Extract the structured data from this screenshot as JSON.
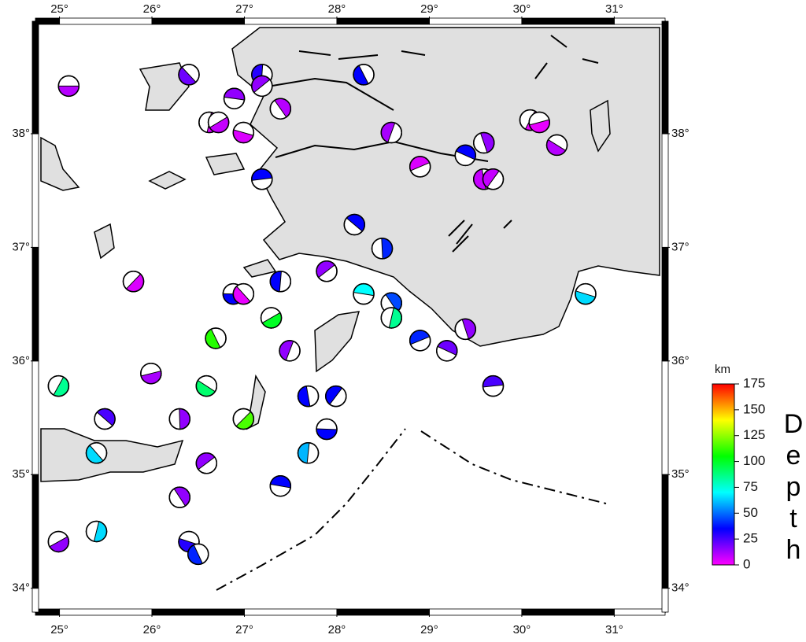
{
  "chart_data": {
    "type": "focal-map",
    "xlim": [
      24.74,
      31.55
    ],
    "ylim": [
      33.79,
      38.99
    ],
    "xticks": [
      {
        "value": 25,
        "label": "25°"
      },
      {
        "value": 26,
        "label": "26°"
      },
      {
        "value": 27,
        "label": "27°"
      },
      {
        "value": 28,
        "label": "28°"
      },
      {
        "value": 29,
        "label": "29°"
      },
      {
        "value": 30,
        "label": "30°"
      },
      {
        "value": 31,
        "label": "31°"
      }
    ],
    "yticks": [
      {
        "value": 34,
        "label": "34°"
      },
      {
        "value": 35,
        "label": "35°"
      },
      {
        "value": 36,
        "label": "36°"
      },
      {
        "value": 37,
        "label": "37°"
      },
      {
        "value": 38,
        "label": "38°"
      }
    ],
    "colorbar": {
      "unit": "km",
      "label": "Depth",
      "clim": [
        0,
        175
      ],
      "ticks": [
        0,
        25,
        50,
        75,
        100,
        125,
        150,
        175
      ],
      "colors": [
        "#ff00ff",
        "#0000ff",
        "#00ffff",
        "#00ff00",
        "#ffff00",
        "#ff0000"
      ]
    },
    "events": {
      "lon": [
        25.1,
        26.4,
        27.19,
        27.19,
        26.89,
        27.39,
        26.62,
        26.72,
        26.99,
        28.29,
        28.59,
        28.9,
        29.39,
        29.59,
        30.09,
        30.19,
        30.38,
        29.59,
        29.69,
        27.19,
        28.19,
        28.49,
        25.8,
        26.88,
        26.99,
        27.39,
        27.89,
        28.29,
        28.59,
        28.59,
        27.29,
        30.69,
        26.69,
        27.49,
        28.9,
        29.19,
        29.39,
        24.99,
        25.99,
        26.59,
        27.69,
        27.99,
        29.69,
        25.49,
        26.3,
        26.99,
        27.89,
        25.4,
        27.69,
        26.59,
        27.39,
        26.3,
        25.4,
        24.99,
        26.4,
        26.5
      ],
      "lat": [
        38.42,
        38.52,
        38.52,
        38.42,
        38.31,
        38.22,
        38.1,
        38.1,
        38.01,
        38.52,
        38.01,
        37.71,
        37.81,
        37.92,
        38.12,
        38.1,
        37.9,
        37.6,
        37.6,
        37.6,
        37.2,
        36.99,
        36.7,
        36.59,
        36.59,
        36.7,
        36.79,
        36.59,
        36.51,
        36.38,
        36.38,
        36.59,
        36.2,
        36.09,
        36.18,
        36.09,
        36.28,
        35.78,
        35.89,
        35.78,
        35.69,
        35.69,
        35.78,
        35.49,
        35.49,
        35.49,
        35.4,
        35.19,
        35.19,
        35.1,
        34.9,
        34.8,
        34.5,
        34.41,
        34.41,
        34.3
      ],
      "depth": [
        10,
        20,
        30,
        15,
        15,
        10,
        5,
        8,
        5,
        35,
        12,
        5,
        35,
        15,
        3,
        3,
        10,
        8,
        8,
        35,
        35,
        40,
        5,
        35,
        3,
        35,
        15,
        70,
        45,
        85,
        100,
        65,
        110,
        15,
        40,
        20,
        15,
        85,
        12,
        90,
        35,
        35,
        25,
        25,
        15,
        115,
        35,
        65,
        60,
        15,
        35,
        15,
        65,
        15,
        30,
        40
      ]
    }
  }
}
